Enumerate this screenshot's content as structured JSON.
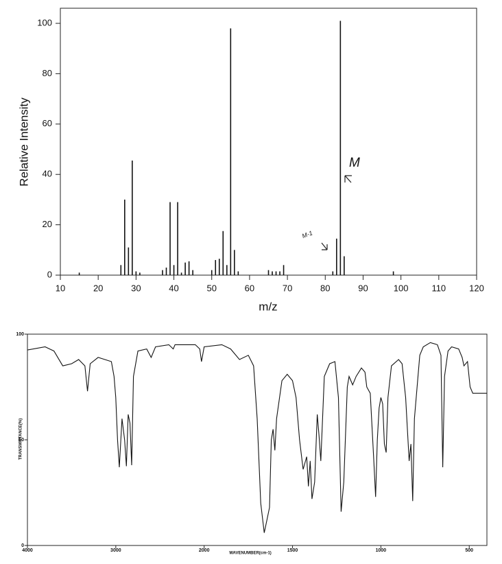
{
  "chart_data": [
    {
      "type": "bar",
      "ylabel": "Relative Intensity",
      "xlabel": "m/z",
      "color": "#111111",
      "x": [
        15,
        26,
        27,
        28,
        29,
        30,
        31,
        37,
        38,
        39,
        40,
        41,
        42,
        43,
        44,
        45,
        50,
        51,
        52,
        53,
        54,
        55,
        56,
        57,
        65,
        66,
        67,
        68,
        69,
        82,
        83,
        84,
        85,
        98
      ],
      "values": [
        1,
        4,
        30,
        11,
        45.5,
        1.5,
        1,
        2,
        3,
        29,
        4,
        29,
        1,
        5,
        5.5,
        2,
        2,
        6,
        6.5,
        17.5,
        4,
        98,
        10,
        1.5,
        2,
        1.5,
        1.5,
        1.5,
        4,
        1.5,
        14.5,
        101,
        7.5,
        1.5
      ],
      "xlim": [
        10,
        120
      ],
      "ylim": [
        0,
        106
      ],
      "xticks": [
        10,
        20,
        30,
        40,
        50,
        60,
        70,
        80,
        90,
        100,
        110,
        120
      ],
      "yticks": [
        0,
        20,
        40,
        60,
        80,
        100
      ],
      "annotations": [
        "M",
        "M-1"
      ]
    },
    {
      "type": "line",
      "ylabel": "TRANSMITTANCE(%)",
      "xlabel": "WAVENUMBER(cm-1)",
      "color": "#111111",
      "x_scale": {
        "break": 2000,
        "factor": 2
      },
      "x": [
        4000,
        3800,
        3700,
        3600,
        3500,
        3420,
        3350,
        3320,
        3290,
        3200,
        3050,
        3020,
        3000,
        2980,
        2960,
        2930,
        2900,
        2880,
        2860,
        2840,
        2820,
        2800,
        2750,
        2650,
        2600,
        2550,
        2400,
        2350,
        2330,
        2100,
        2050,
        2030,
        2000,
        1900,
        1850,
        1800,
        1750,
        1720,
        1700,
        1680,
        1660,
        1645,
        1630,
        1620,
        1610,
        1600,
        1590,
        1560,
        1530,
        1500,
        1480,
        1460,
        1440,
        1420,
        1410,
        1400,
        1390,
        1375,
        1360,
        1350,
        1340,
        1320,
        1290,
        1260,
        1240,
        1225,
        1210,
        1190,
        1180,
        1160,
        1140,
        1110,
        1090,
        1080,
        1060,
        1040,
        1030,
        1020,
        1010,
        1000,
        990,
        980,
        970,
        960,
        940,
        900,
        880,
        860,
        840,
        830,
        820,
        810,
        780,
        760,
        720,
        680,
        660,
        650,
        640,
        620,
        600,
        560,
        540,
        530,
        510,
        495,
        480,
        450,
        400
      ],
      "values": [
        92.5,
        94,
        92,
        85,
        86,
        88,
        85,
        73,
        86,
        89,
        87,
        80,
        70,
        50,
        37,
        60,
        50,
        37.5,
        62,
        58,
        38,
        80,
        92,
        93,
        89,
        94,
        95,
        93,
        95,
        95,
        93,
        87,
        94,
        95,
        93,
        88,
        90,
        85,
        60,
        20,
        6,
        12,
        18,
        50,
        55,
        45,
        60,
        78,
        81,
        78,
        70,
        50,
        36,
        42,
        28,
        40,
        22,
        30,
        62,
        52,
        40,
        80,
        86,
        87,
        70,
        16,
        30,
        75,
        80,
        76,
        80,
        84,
        82,
        75,
        72,
        40,
        23,
        50,
        65,
        70,
        67,
        48,
        44,
        70,
        85,
        88,
        86,
        70,
        40,
        48,
        21,
        60,
        90,
        94,
        96,
        95,
        90,
        37,
        80,
        92,
        94,
        93,
        89,
        85,
        87,
        75,
        72,
        72,
        72
      ],
      "xlim": [
        4000,
        400
      ],
      "ylim": [
        0,
        100
      ],
      "xticks": [
        4000,
        3000,
        2000,
        1500,
        1000,
        500
      ],
      "yticks": [
        0,
        50,
        100
      ]
    }
  ]
}
